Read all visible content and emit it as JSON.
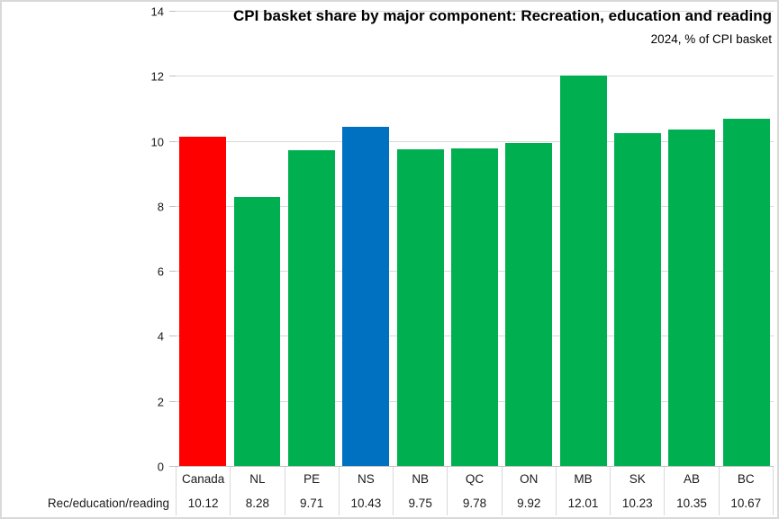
{
  "chart_data": {
    "type": "bar",
    "title": "CPI basket share by major component: Recreation, education and reading",
    "subtitle": "2024, % of CPI basket",
    "categories": [
      "Canada",
      "NL",
      "PE",
      "NS",
      "NB",
      "QC",
      "ON",
      "MB",
      "SK",
      "AB",
      "BC"
    ],
    "series": [
      {
        "name": "Rec/education/reading",
        "values": [
          10.12,
          8.28,
          9.71,
          10.43,
          9.75,
          9.78,
          9.92,
          12.01,
          10.23,
          10.35,
          10.67
        ]
      }
    ],
    "ylim": [
      0,
      14
    ],
    "yticks": [
      0,
      2,
      4,
      6,
      8,
      10,
      12,
      14
    ],
    "grid": true,
    "legend": false,
    "data_table_shown": true,
    "bar_colors": {
      "default": "#00B050",
      "Canada": "#FF0000",
      "NS": "#0070C0"
    },
    "accent_colors": {
      "gridline": "#D9D9D9",
      "axis": "#BFBFBF",
      "text": "#000000"
    }
  }
}
